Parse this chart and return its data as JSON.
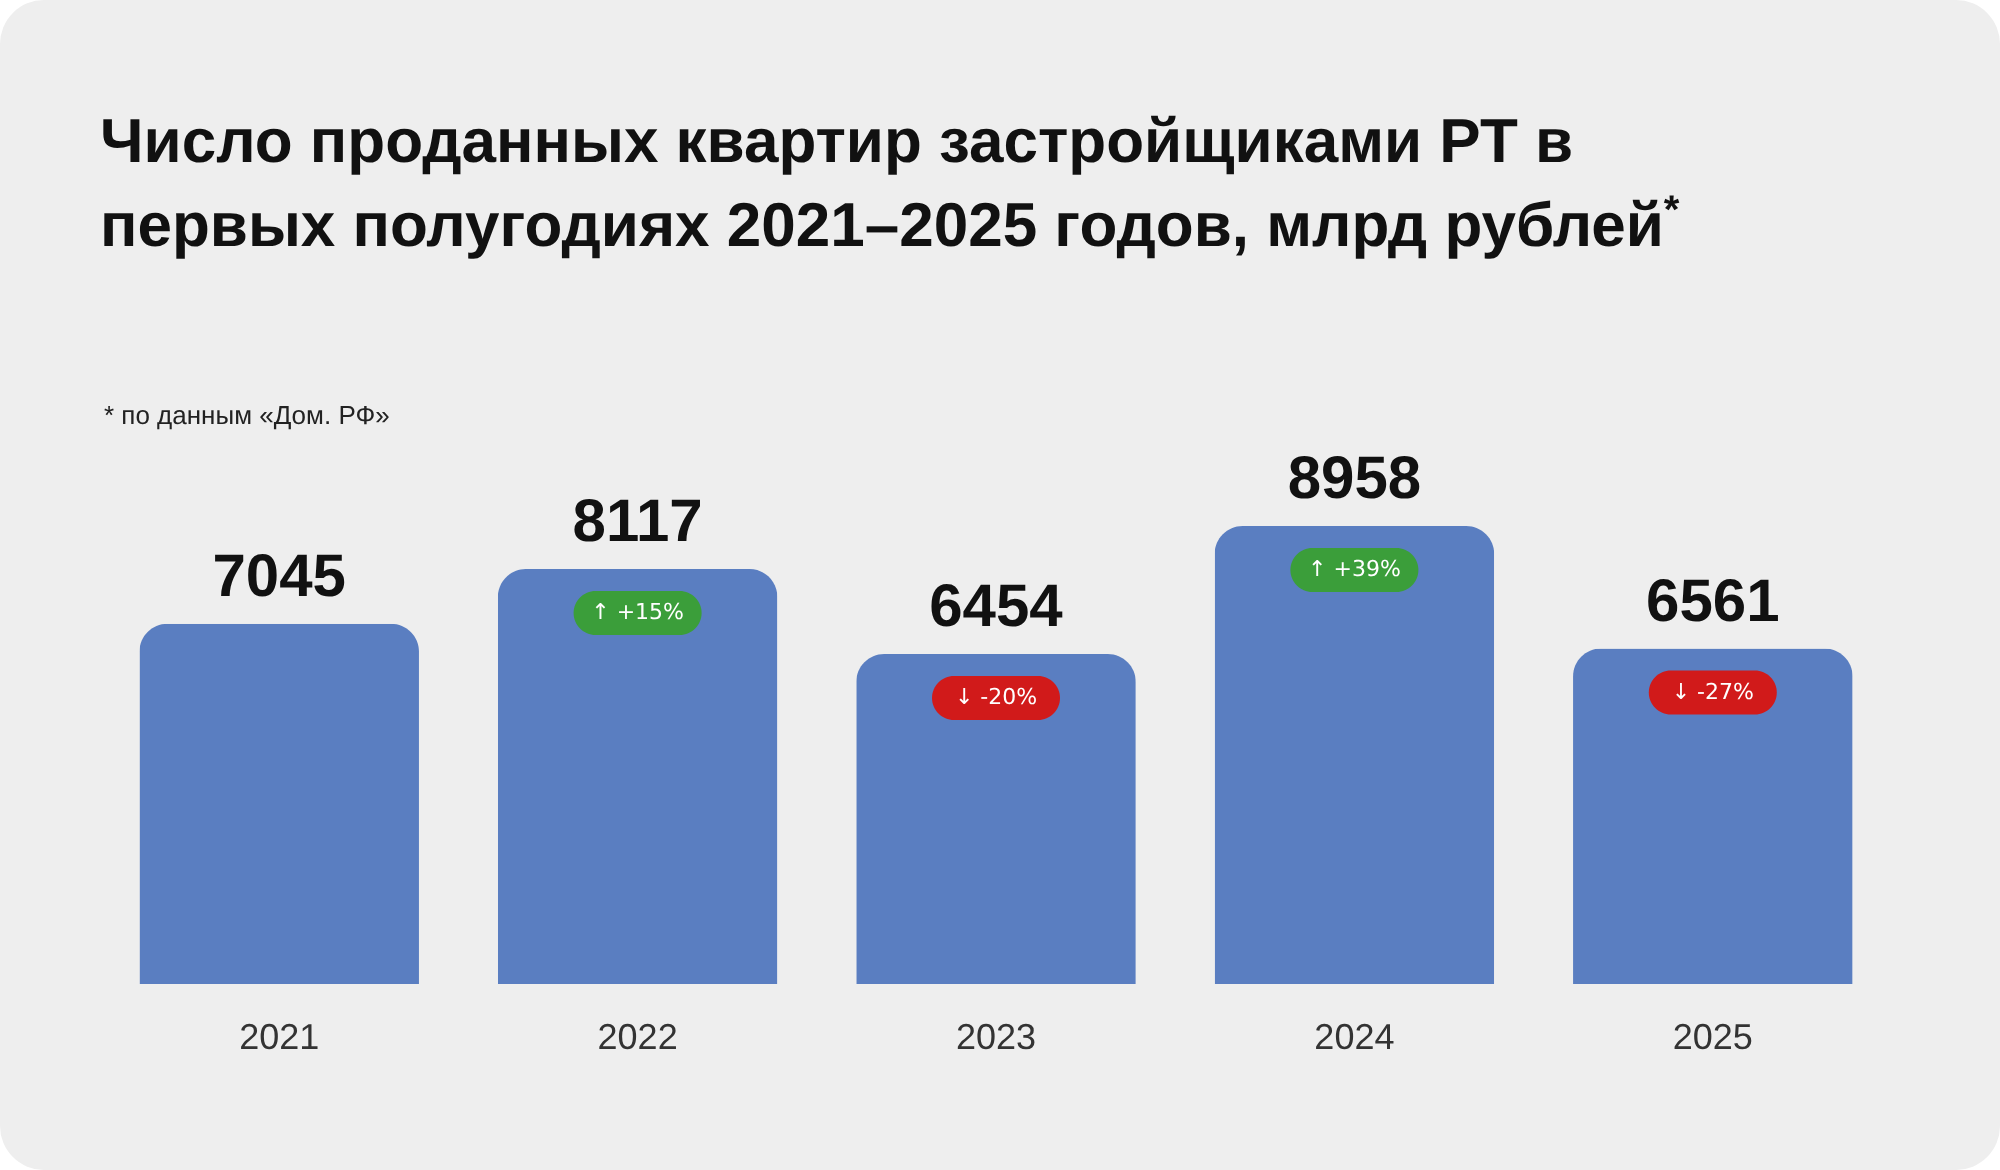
{
  "chart_data": {
    "type": "bar",
    "title": "Число проданных квартир застройщиками РТ в первых полугодиях 2021–2025 годов, млрд рублей$^{*}$",
    "categories": [
      "2021",
      "2022",
      "2023",
      "2024",
      "2025"
    ],
    "values": [
      7045,
      8117,
      6454,
      8958,
      6561
    ],
    "color": "#5a7ec1",
    "data_labels": true,
    "annotations": [
      "* по данным «Дом. РФ»",
      "↑ +15%",
      "↓ -20%",
      "↑ +39%",
      "↓ -27%"
    ]
  }
}
